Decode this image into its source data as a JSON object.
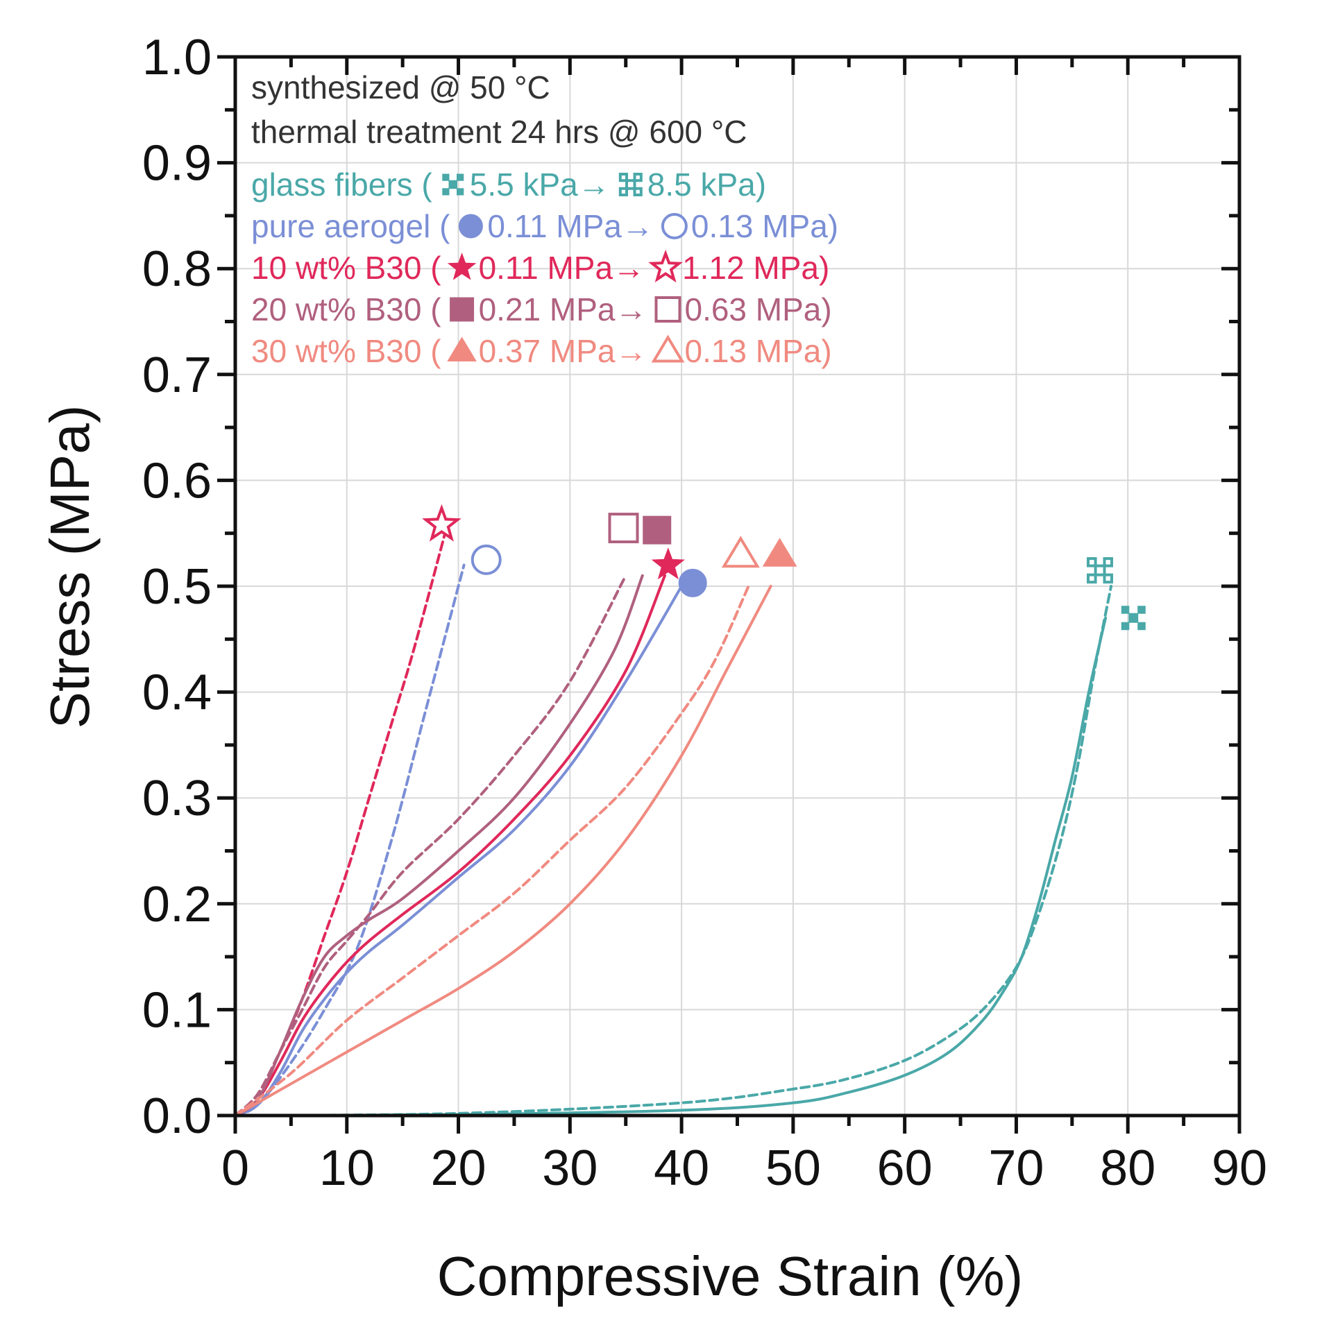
{
  "chart_data": {
    "type": "line",
    "xlabel": "Compressive Strain (%)",
    "ylabel": "Stress (MPa)",
    "xlim": [
      0,
      90
    ],
    "ylim": [
      0,
      1.0
    ],
    "xticks": [
      "0",
      "10",
      "20",
      "30",
      "40",
      "50",
      "60",
      "70",
      "80",
      "90"
    ],
    "yticks": [
      "0.0",
      "0.1",
      "0.2",
      "0.3",
      "0.4",
      "0.5",
      "0.6",
      "0.7",
      "0.8",
      "0.9",
      "1.0"
    ],
    "grid": true,
    "annotations": {
      "line1": "synthesized @ 50 °C",
      "line2": "thermal treatment 24 hrs @ 600 °C"
    },
    "legend": [
      {
        "label": "glass fibers (",
        "before": "5.5 kPa",
        "after": "8.5 kPa",
        "close": ")",
        "marker": "plus",
        "color": "#4aa8a8"
      },
      {
        "label": "pure aerogel (",
        "before": "0.11 MPa",
        "after": "0.13 MPa",
        "close": ")",
        "marker": "circle",
        "color": "#7b8fd6"
      },
      {
        "label": "10 wt% B30 (",
        "before": "0.11 MPa",
        "after": "1.12 MPa",
        "close": ")",
        "marker": "star",
        "color": "#e0285a"
      },
      {
        "label": "20 wt% B30 (",
        "before": "0.21 MPa",
        "after": "0.63 MPa",
        "close": ")",
        "marker": "square",
        "color": "#b0607e"
      },
      {
        "label": "30 wt% B30 (",
        "before": "0.37 MPa",
        "after": "0.13 MPa",
        "close": ")",
        "marker": "triangle",
        "color": "#f08a80"
      }
    ],
    "arrow": "→",
    "series": [
      {
        "legend_index": 0,
        "style": "solid",
        "color": "#4aa8a8",
        "x": [
          0,
          20,
          40,
          50,
          55,
          60,
          64,
          67,
          69,
          70.5,
          72,
          73.5,
          75,
          76.5,
          78
        ],
        "y": [
          0,
          0.001,
          0.005,
          0.012,
          0.022,
          0.038,
          0.06,
          0.09,
          0.12,
          0.15,
          0.2,
          0.26,
          0.32,
          0.4,
          0.47
        ]
      },
      {
        "legend_index": 0,
        "style": "dashed",
        "color": "#4aa8a8",
        "x": [
          0,
          20,
          40,
          50,
          55,
          60,
          64,
          67,
          70,
          72,
          74,
          75.5,
          77,
          78.5
        ],
        "y": [
          0,
          0.002,
          0.012,
          0.025,
          0.035,
          0.052,
          0.075,
          0.1,
          0.14,
          0.19,
          0.26,
          0.33,
          0.42,
          0.5
        ]
      },
      {
        "legend_index": 1,
        "style": "solid",
        "color": "#7b8fd6",
        "x": [
          0,
          2,
          4,
          6,
          8,
          10,
          12,
          15,
          20,
          25,
          30,
          35,
          40
        ],
        "y": [
          0,
          0.01,
          0.04,
          0.08,
          0.11,
          0.135,
          0.155,
          0.18,
          0.225,
          0.27,
          0.33,
          0.41,
          0.5
        ]
      },
      {
        "legend_index": 1,
        "style": "dashed",
        "color": "#7b8fd6",
        "x": [
          0,
          2,
          5,
          8,
          11,
          14,
          17,
          20.5
        ],
        "y": [
          0,
          0.01,
          0.05,
          0.1,
          0.16,
          0.26,
          0.38,
          0.52
        ]
      },
      {
        "legend_index": 2,
        "style": "solid",
        "color": "#e0285a",
        "x": [
          0,
          2,
          4,
          6,
          8,
          10,
          12,
          15,
          20,
          25,
          30,
          35,
          38.5
        ],
        "y": [
          0,
          0.015,
          0.05,
          0.09,
          0.12,
          0.145,
          0.165,
          0.19,
          0.23,
          0.28,
          0.34,
          0.42,
          0.51
        ]
      },
      {
        "legend_index": 2,
        "style": "dashed",
        "color": "#e0285a",
        "x": [
          0,
          2,
          4,
          6,
          8,
          10,
          12,
          14,
          16,
          18.8
        ],
        "y": [
          0,
          0.02,
          0.06,
          0.11,
          0.17,
          0.23,
          0.3,
          0.37,
          0.44,
          0.55
        ]
      },
      {
        "legend_index": 3,
        "style": "solid",
        "color": "#b0607e",
        "x": [
          0,
          2,
          4,
          6,
          8,
          10,
          12,
          15,
          20,
          25,
          30,
          34,
          36.5
        ],
        "y": [
          0,
          0.015,
          0.06,
          0.11,
          0.15,
          0.17,
          0.185,
          0.205,
          0.25,
          0.3,
          0.37,
          0.44,
          0.51
        ]
      },
      {
        "legend_index": 3,
        "style": "dashed",
        "color": "#b0607e",
        "x": [
          0,
          2,
          4,
          6,
          8,
          10,
          12,
          15,
          20,
          25,
          30,
          35
        ],
        "y": [
          0,
          0.02,
          0.06,
          0.1,
          0.14,
          0.165,
          0.19,
          0.23,
          0.28,
          0.34,
          0.41,
          0.51
        ]
      },
      {
        "legend_index": 4,
        "style": "solid",
        "color": "#f08a80",
        "x": [
          0,
          5,
          10,
          15,
          20,
          25,
          30,
          35,
          40,
          44,
          48
        ],
        "y": [
          0,
          0.03,
          0.06,
          0.09,
          0.12,
          0.155,
          0.2,
          0.26,
          0.34,
          0.42,
          0.5
        ]
      },
      {
        "legend_index": 4,
        "style": "dashed",
        "color": "#f08a80",
        "x": [
          0,
          5,
          10,
          15,
          20,
          25,
          30,
          35,
          40,
          43,
          46
        ],
        "y": [
          0,
          0.04,
          0.09,
          0.13,
          0.17,
          0.21,
          0.26,
          0.31,
          0.38,
          0.43,
          0.5
        ]
      }
    ],
    "end_markers": [
      {
        "marker": "plus",
        "filled": true,
        "color": "#4aa8a8",
        "x": 80.5,
        "y": 0.47
      },
      {
        "marker": "plus",
        "filled": false,
        "color": "#4aa8a8",
        "x": 77.5,
        "y": 0.515
      },
      {
        "marker": "circle",
        "filled": true,
        "color": "#7b8fd6",
        "x": 41,
        "y": 0.503
      },
      {
        "marker": "circle",
        "filled": false,
        "color": "#7b8fd6",
        "x": 22.5,
        "y": 0.525
      },
      {
        "marker": "star",
        "filled": true,
        "color": "#e0285a",
        "x": 38.8,
        "y": 0.52
      },
      {
        "marker": "star",
        "filled": false,
        "color": "#e0285a",
        "x": 18.5,
        "y": 0.558
      },
      {
        "marker": "square",
        "filled": true,
        "color": "#b0607e",
        "x": 37.8,
        "y": 0.553
      },
      {
        "marker": "square",
        "filled": false,
        "color": "#b0607e",
        "x": 34.8,
        "y": 0.555
      },
      {
        "marker": "triangle",
        "filled": true,
        "color": "#f08a80",
        "x": 48.8,
        "y": 0.53
      },
      {
        "marker": "triangle",
        "filled": false,
        "color": "#f08a80",
        "x": 45.3,
        "y": 0.53
      }
    ]
  }
}
